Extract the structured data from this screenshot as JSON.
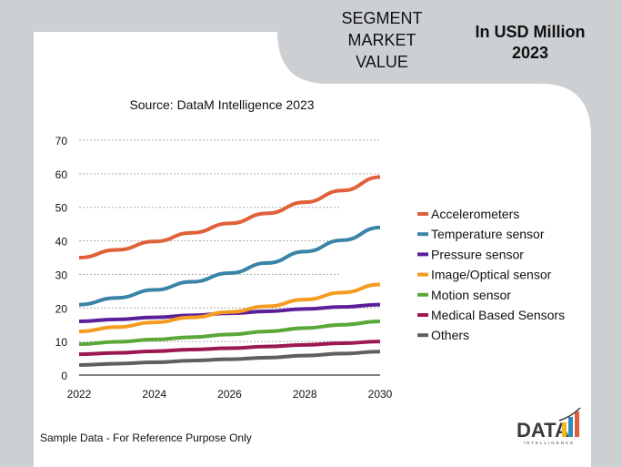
{
  "header": {
    "segment_lines": [
      "SEGMENT",
      "MARKET",
      "VALUE"
    ],
    "unit_lines": [
      "In USD Million",
      "2023"
    ]
  },
  "footer": {
    "note": "Sample Data - For Reference Purpose Only",
    "logo_text": "DATA",
    "logo_subtext": "INTELLIGENCE"
  },
  "chart_data": {
    "type": "line",
    "subtitle": "Source: DataM Intelligence  2023",
    "x": [
      2022,
      2023,
      2024,
      2025,
      2026,
      2027,
      2028,
      2029,
      2030
    ],
    "x_ticks": [
      "2022",
      "2024",
      "2026",
      "2028",
      "2030"
    ],
    "y_ticks": [
      "0",
      "10",
      "20",
      "30",
      "40",
      "50",
      "60",
      "70"
    ],
    "ylim": [
      0,
      70
    ],
    "grid": "horizontal dotted",
    "legend_position": "right",
    "series": [
      {
        "name": "Accelerometers",
        "color": "#e0603a",
        "values": [
          35,
          37.3,
          39.8,
          42.4,
          45.2,
          48.2,
          51.5,
          55,
          59
        ]
      },
      {
        "name": "Temperature sensor",
        "color": "#3a84a8",
        "values": [
          21,
          23,
          25.4,
          27.8,
          30.4,
          33.4,
          36.8,
          40.2,
          44
        ]
      },
      {
        "name": "Pressure sensor",
        "color": "#5b1f9a",
        "values": [
          16,
          16.6,
          17.2,
          17.8,
          18.4,
          19,
          19.7,
          20.3,
          21
        ]
      },
      {
        "name": "Image/Optical sensor",
        "color": "#f39c1f",
        "values": [
          13,
          14.3,
          15.7,
          17.2,
          18.8,
          20.5,
          22.5,
          24.6,
          27
        ]
      },
      {
        "name": "Motion sensor",
        "color": "#5aa83a",
        "values": [
          9.2,
          9.9,
          10.6,
          11.3,
          12.1,
          13,
          14,
          15,
          16
        ]
      },
      {
        "name": "Medical Based Sensors",
        "color": "#9b1850",
        "values": [
          6.2,
          6.6,
          7.1,
          7.6,
          8,
          8.5,
          9,
          9.5,
          10
        ]
      },
      {
        "name": "Others",
        "color": "#5f5f5f",
        "values": [
          3,
          3.4,
          3.8,
          4.3,
          4.7,
          5.2,
          5.8,
          6.4,
          7
        ]
      }
    ]
  }
}
